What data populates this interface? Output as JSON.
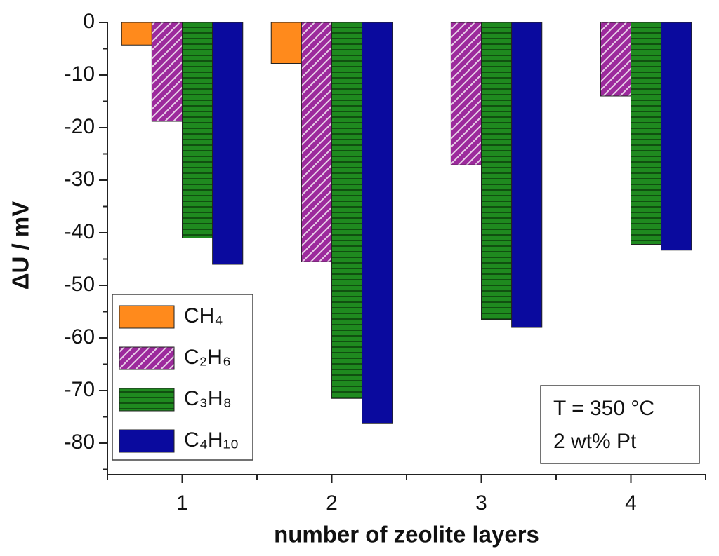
{
  "chart_data": {
    "type": "bar",
    "xlabel": "number of zeolite layers",
    "ylabel": "ΔU / mV",
    "categories": [
      "1",
      "2",
      "3",
      "4"
    ],
    "series": [
      {
        "name": "CH₄",
        "color": "#ff8a1c",
        "pattern": "solid",
        "values": [
          -4.3,
          -7.8,
          null,
          null
        ]
      },
      {
        "name": "C₂H₆",
        "color": "#9c2a9c",
        "pattern": "diagonal",
        "values": [
          -18.8,
          -45.5,
          -27.1,
          -14
        ]
      },
      {
        "name": "C₃H₈",
        "color": "#1f8a1f",
        "pattern": "horizontal",
        "values": [
          -41,
          -71.5,
          -56.5,
          -42.2
        ]
      },
      {
        "name": "C₄H₁₀",
        "color": "#0a0a9e",
        "pattern": "solid",
        "values": [
          -46,
          -76.3,
          -58,
          -43.3
        ]
      }
    ],
    "ylim": [
      -86,
      0
    ],
    "yticks": [
      0,
      -10,
      -20,
      -30,
      -40,
      -50,
      -60,
      -70,
      -80
    ],
    "yminorticks": [
      -5,
      -15,
      -25,
      -35,
      -45,
      -55,
      -65,
      -75,
      -85
    ],
    "annotation": [
      "T = 350 °C",
      "2 wt% Pt"
    ],
    "legend": "lower left"
  }
}
